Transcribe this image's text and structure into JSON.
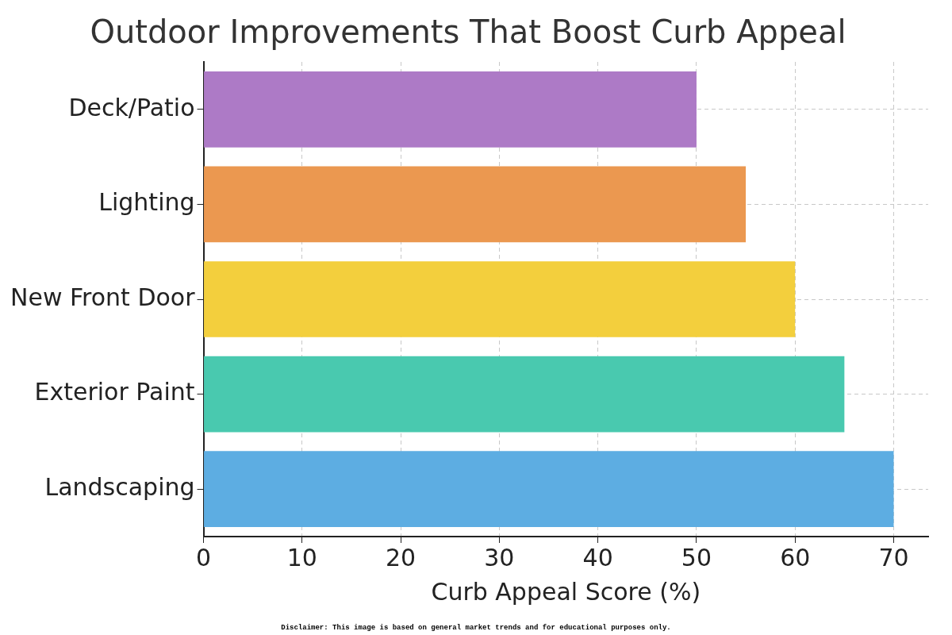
{
  "chart_data": {
    "type": "bar",
    "orientation": "horizontal",
    "title": "Outdoor Improvements That Boost Curb Appeal",
    "xlabel": "Curb Appeal Score (%)",
    "categories": [
      "Deck/Patio",
      "Lighting",
      "New Front Door",
      "Exterior Paint",
      "Landscaping"
    ],
    "values": [
      50,
      55,
      60,
      65,
      70
    ],
    "colors": [
      "#ad7ac6",
      "#eb9850",
      "#f3cf3d",
      "#49c9af",
      "#5dade2"
    ],
    "xlim": [
      0,
      73.5
    ],
    "xticks": [
      0,
      10,
      20,
      30,
      40,
      50,
      60,
      70
    ],
    "grid": true,
    "annotations": [
      "Disclaimer: This image is based on general market trends and for educational purposes only."
    ]
  }
}
